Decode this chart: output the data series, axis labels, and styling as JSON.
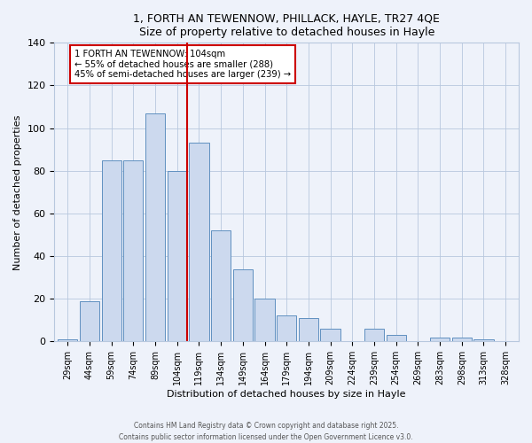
{
  "title": "1, FORTH AN TEWENNOW, PHILLACK, HAYLE, TR27 4QE",
  "subtitle": "Size of property relative to detached houses in Hayle",
  "xlabel": "Distribution of detached houses by size in Hayle",
  "ylabel": "Number of detached properties",
  "bar_color": "#ccd9ee",
  "bar_edge_color": "#6090c0",
  "categories": [
    "29sqm",
    "44sqm",
    "59sqm",
    "74sqm",
    "89sqm",
    "104sqm",
    "119sqm",
    "134sqm",
    "149sqm",
    "164sqm",
    "179sqm",
    "194sqm",
    "209sqm",
    "224sqm",
    "239sqm",
    "254sqm",
    "269sqm",
    "283sqm",
    "298sqm",
    "313sqm",
    "328sqm"
  ],
  "values": [
    1,
    19,
    85,
    85,
    107,
    80,
    93,
    52,
    34,
    20,
    12,
    11,
    6,
    0,
    6,
    3,
    0,
    2,
    2,
    1,
    0
  ],
  "vline_color": "#cc0000",
  "annotation_text": "1 FORTH AN TEWENNOW: 104sqm\n← 55% of detached houses are smaller (288)\n45% of semi-detached houses are larger (239) →",
  "ylim": [
    0,
    140
  ],
  "yticks": [
    0,
    20,
    40,
    60,
    80,
    100,
    120,
    140
  ],
  "footer1": "Contains HM Land Registry data © Crown copyright and database right 2025.",
  "footer2": "Contains public sector information licensed under the Open Government Licence v3.0.",
  "background_color": "#eef2fa",
  "grid_color": "#b8c8de"
}
